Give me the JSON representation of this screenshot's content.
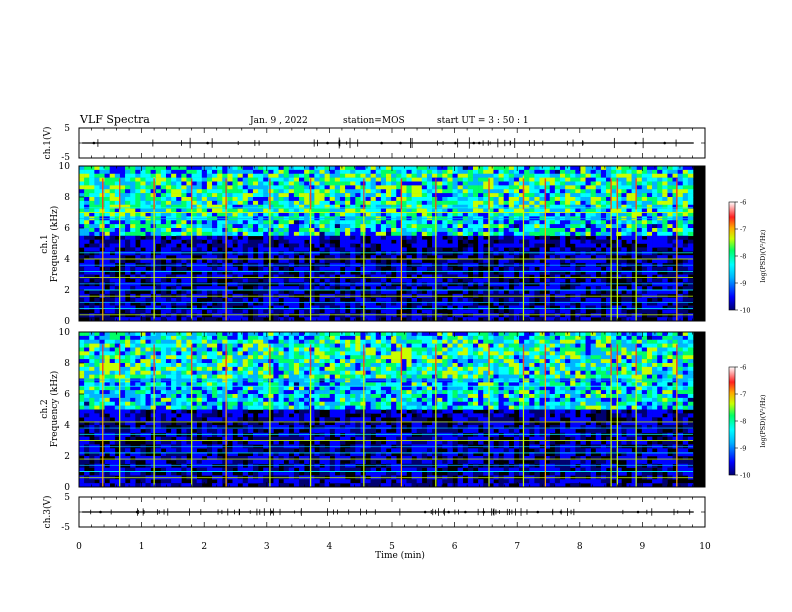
{
  "header": {
    "title": "VLF Spectra",
    "date": "Jan. 9 , 2022",
    "station": "station=MOS",
    "start": "start UT =  3 : 50 : 1"
  },
  "colors": {
    "background": "#ffffff",
    "spectrogram_floor": "#000000",
    "colormap": [
      "#000000",
      "#000070",
      "#0000ff",
      "#00b4ff",
      "#00ffff",
      "#00ff66",
      "#c8ff00",
      "#ffaa00",
      "#ff2020",
      "#ffffff"
    ]
  },
  "chart_data": {
    "type": "heatmap",
    "xlabel": "Time  (min)",
    "xlim": [
      0,
      10
    ],
    "xticks": [
      "0",
      "1",
      "2",
      "3",
      "4",
      "5",
      "6",
      "7",
      "8",
      "9",
      "10"
    ],
    "panels": [
      {
        "id": "ch1-voltage",
        "ylabel": "ch.1(V)",
        "ylim": [
          -5,
          5
        ],
        "yticks": [
          "5",
          "-5"
        ],
        "baseline_v": 0
      },
      {
        "id": "ch1-spectrogram",
        "ylabel_line1": "ch.1",
        "ylabel_line2": "Frequency  (kHz)",
        "ylim": [
          0,
          10
        ],
        "yticks": [
          "0",
          "2",
          "4",
          "6",
          "8",
          "10"
        ],
        "colorbar": {
          "label": "log(PSD)(V²/Hz)",
          "range": [
            -10,
            -6
          ],
          "ticks": [
            "-6",
            "-7",
            "-8",
            "-9",
            "-10"
          ]
        },
        "emission_band_khz": [
          5.5,
          10
        ],
        "line_tones_khz": [
          0.4,
          0.8,
          1.2,
          1.6,
          2.0,
          2.4,
          2.8,
          3.2,
          3.6,
          4.0,
          4.4,
          6.6,
          7.0,
          7.3
        ],
        "impulsive_events_min": [
          0.38,
          0.65,
          1.2,
          1.8,
          2.35,
          3.05,
          3.7,
          4.55,
          5.15,
          5.7,
          6.55,
          7.1,
          7.45,
          8.5,
          8.6,
          8.9,
          9.55
        ]
      },
      {
        "id": "ch2-spectrogram",
        "ylabel_line1": "ch.2",
        "ylabel_line2": "Frequency  (kHz)",
        "ylim": [
          0,
          10
        ],
        "yticks": [
          "0",
          "2",
          "4",
          "6",
          "8",
          "10"
        ],
        "colorbar": {
          "label": "log(PSD)(V²/Hz)",
          "range": [
            -10,
            -6
          ],
          "ticks": [
            "-6",
            "-7",
            "-8",
            "-9",
            "-10"
          ]
        },
        "emission_band_khz": [
          5.0,
          10
        ],
        "line_tones_khz": [
          0.6,
          1.0,
          1.4,
          1.8,
          2.2,
          2.6,
          3.0,
          3.4,
          3.8,
          4.2,
          6.5,
          6.9
        ],
        "impulsive_events_min": [
          0.38,
          0.65,
          1.2,
          1.8,
          2.35,
          3.05,
          3.7,
          4.55,
          5.15,
          5.7,
          6.55,
          7.1,
          7.45,
          8.5,
          8.6,
          8.9,
          9.55
        ]
      },
      {
        "id": "ch3-voltage",
        "ylabel": "ch.3(V)",
        "ylim": [
          -5,
          5
        ],
        "yticks": [
          "5",
          "-5"
        ],
        "baseline_v": 0
      }
    ]
  }
}
